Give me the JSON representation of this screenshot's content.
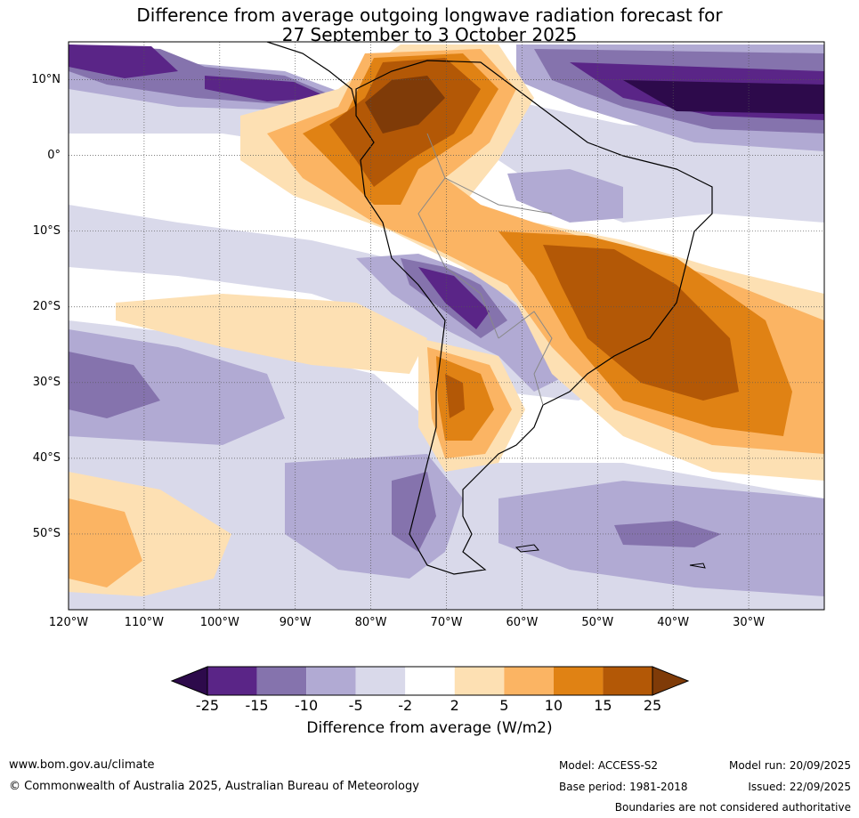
{
  "title": {
    "line1": "Difference from average outgoing longwave radiation forecast for",
    "line2": "27 September to 3 October 2025"
  },
  "map": {
    "lat_labels": [
      "10°N",
      "0°",
      "10°S",
      "20°S",
      "30°S",
      "40°S",
      "50°S"
    ],
    "lat_values": [
      10,
      0,
      -10,
      -20,
      -30,
      -40,
      -50
    ],
    "lon_labels": [
      "120°W",
      "110°W",
      "100°W",
      "90°W",
      "80°W",
      "70°W",
      "60°W",
      "50°W",
      "40°W",
      "30°W"
    ],
    "lon_values": [
      -120,
      -110,
      -100,
      -90,
      -80,
      -70,
      -60,
      -50,
      -40,
      -30
    ],
    "lat_range": [
      -60,
      15
    ],
    "lon_range": [
      -120,
      -20
    ]
  },
  "colorbar": {
    "ticks": [
      "-25",
      "-15",
      "-10",
      "-5",
      "-2",
      "2",
      "5",
      "10",
      "15",
      "25"
    ],
    "colors": [
      "#2d0a4b",
      "#5a2587",
      "#8573ad",
      "#b1aad3",
      "#d9d9ea",
      "#ffffff",
      "#fde0b3",
      "#fbb463",
      "#e08214",
      "#b35806",
      "#7f3b08"
    ],
    "label": "Difference from average (W/m2)"
  },
  "footer": {
    "website": "www.bom.gov.au/climate",
    "copyright": "© Commonwealth of Australia 2025, Australian Bureau of Meteorology",
    "model": "Model: ACCESS-S2",
    "base_period": "Base period: 1981-2018",
    "model_run": "Model run: 20/09/2025",
    "issued": "Issued: 22/09/2025",
    "disclaimer": "Boundaries are not considered authoritative"
  }
}
